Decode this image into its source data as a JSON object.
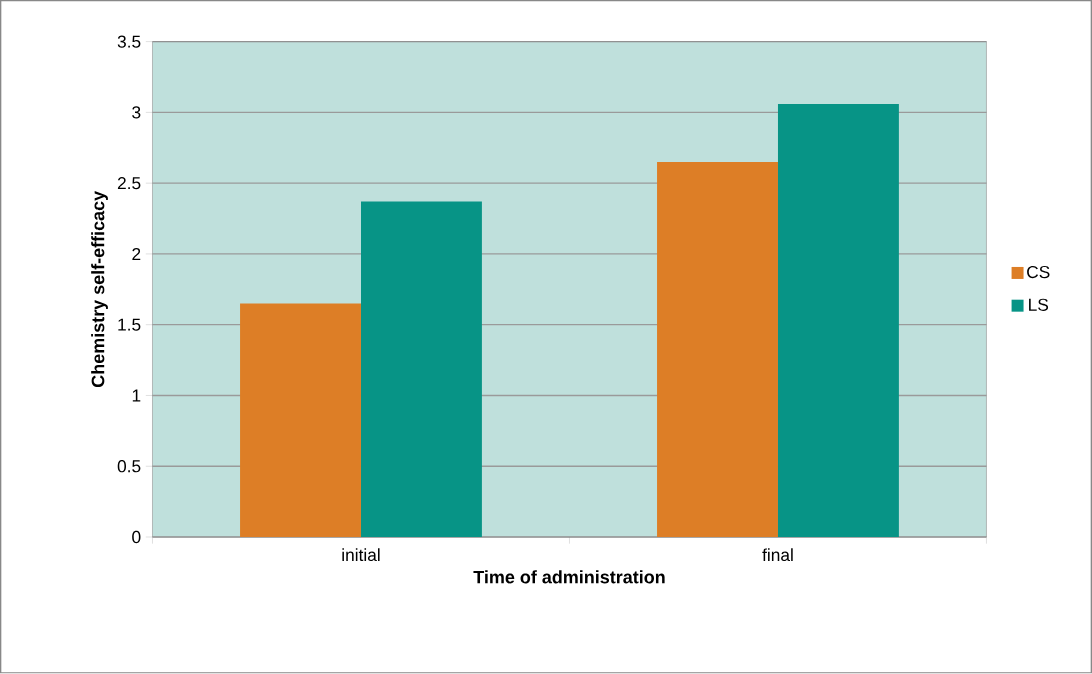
{
  "chart_data": {
    "type": "bar",
    "xlabel": "Time of administration",
    "ylabel": "Chemistry self-efficacy",
    "categories": [
      "initial",
      "final"
    ],
    "series": [
      {
        "name": "CS",
        "color": "#dd7e26",
        "values": [
          1.65,
          2.65
        ]
      },
      {
        "name": "LS",
        "color": "#079486",
        "values": [
          2.37,
          3.06
        ]
      }
    ],
    "ylim": [
      0,
      3.5
    ],
    "yticks": [
      0,
      0.5,
      1,
      1.5,
      2,
      2.5,
      3,
      3.5
    ],
    "grid": "y",
    "legend": "right"
  }
}
